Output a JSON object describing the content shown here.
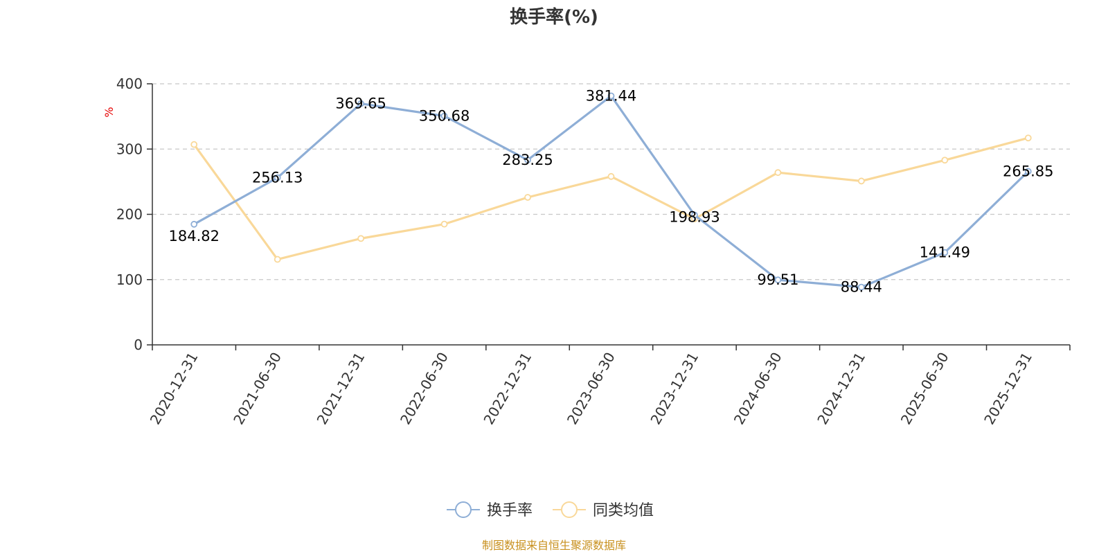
{
  "chart_data": {
    "type": "line",
    "title": "换手率(%)",
    "ylabel": "%",
    "ylim": [
      0,
      400
    ],
    "yticks": [
      0,
      100,
      200,
      300,
      400
    ],
    "grid": true,
    "legend_position": "bottom-center",
    "x": [
      "2020-12-31",
      "2021-06-30",
      "2021-12-31",
      "2022-06-30",
      "2022-12-31",
      "2023-06-30",
      "2023-12-31",
      "2024-06-30",
      "2024-12-31",
      "2025-06-30",
      "2025-12-31"
    ],
    "series": [
      {
        "name": "换手率",
        "color": "#8eaed6",
        "values": [
          184.82,
          256.13,
          369.65,
          350.68,
          283.25,
          381.44,
          198.93,
          99.51,
          88.44,
          141.49,
          265.85
        ],
        "labels": [
          "184.82",
          "256.13",
          "369.65",
          "350.68",
          "283.25",
          "381.44",
          "198.93",
          "99.51",
          "88.44",
          "141.49",
          "265.85"
        ]
      },
      {
        "name": "同类均值",
        "color": "#f9d899",
        "values": [
          307,
          131,
          163,
          185,
          226,
          258,
          193,
          264,
          251,
          283,
          317
        ]
      }
    ]
  },
  "source_note": "制图数据来自恒生聚源数据库"
}
